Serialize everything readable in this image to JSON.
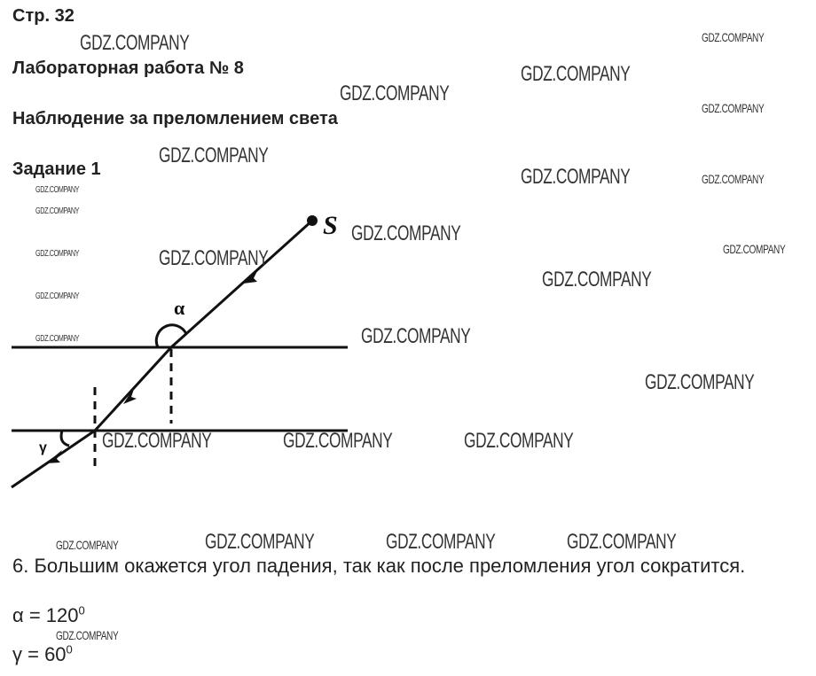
{
  "page": "Стр. 32",
  "lab_title": "Лабораторная работа № 8",
  "lab_subject": "Наблюдение за преломлением света",
  "task": "Задание 1",
  "diagram": {
    "source_label": "S",
    "incidence_angle_label": "α",
    "refraction_angle_label": "γ"
  },
  "answer_6": "6. Большим окажется угол падения, так как после преломления угол сократится.",
  "alpha": {
    "label": "α = 120",
    "unit": "0"
  },
  "gamma": {
    "label": "γ = 60",
    "unit": "0"
  },
  "watermark": "GDZ.COMPANY"
}
